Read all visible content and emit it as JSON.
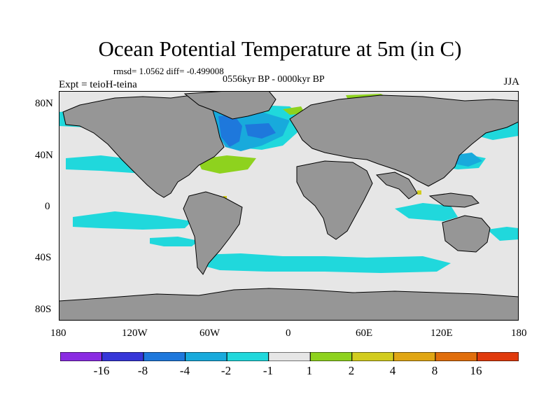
{
  "title": "Ocean Potential Temperature at 5m (in C)",
  "stats": "rmsd= 1.0562 diff= -0.499008",
  "experiment": "Expt = teioH-teina",
  "period": "0556kyr BP - 0000kyr BP",
  "season": "JJA",
  "y_ticks": [
    "80N",
    "40N",
    "0",
    "40S",
    "80S"
  ],
  "x_ticks": [
    "180",
    "120W",
    "60W",
    "0",
    "60E",
    "120E",
    "180"
  ],
  "colorbar": {
    "colors": [
      "#8a2be2",
      "#3636d8",
      "#1e78dc",
      "#18aadc",
      "#20d8dc",
      "#e6e6e6",
      "#8ed21e",
      "#d2cc1e",
      "#e0a614",
      "#e06e0c",
      "#e03a0c"
    ],
    "labels": [
      "-16",
      "-8",
      "-4",
      "-2",
      "-1",
      "1",
      "2",
      "4",
      "8",
      "16"
    ]
  },
  "colors": {
    "land": "#969696",
    "neutral_ocean": "#e6e6e6",
    "cool": "#20d8dc",
    "colder": "#18aadc",
    "coldest": "#1e78dc",
    "warm": "#8ed21e",
    "warmer": "#d2cc1e"
  }
}
